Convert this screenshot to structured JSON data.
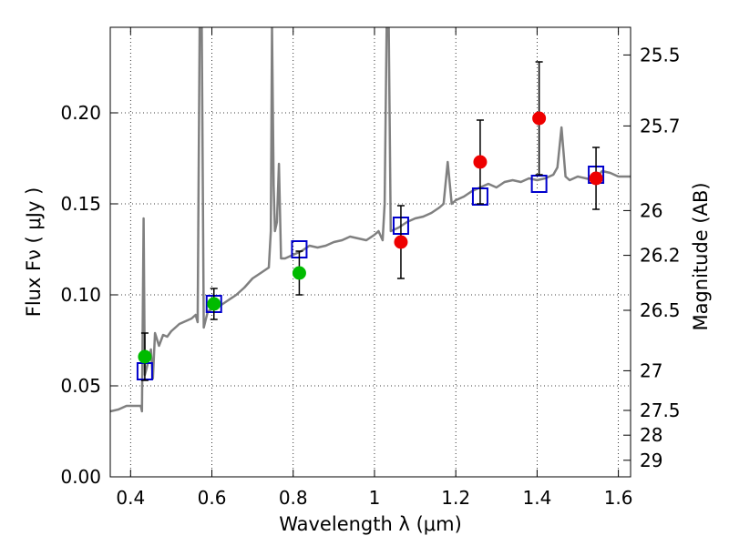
{
  "chart_data": {
    "type": "scatter",
    "xlabel": "Wavelength  λ (μm)",
    "ylabel": "Flux  Fν  ( μJy )",
    "y2label": "Magnitude (AB)",
    "xlim": [
      0.35,
      1.63
    ],
    "ylim": [
      0.0,
      0.247
    ],
    "grid": true,
    "x_ticks": [
      0.4,
      0.6,
      0.8,
      1.0,
      1.2,
      1.4,
      1.6
    ],
    "x_tick_labels": [
      "0.4",
      "0.6",
      "0.8",
      "1",
      "1.2",
      "1.4",
      "1.6"
    ],
    "y_ticks": [
      0.0,
      0.05,
      0.1,
      0.15,
      0.2
    ],
    "y_tick_labels": [
      "0.00",
      "0.05",
      "0.10",
      "0.15",
      "0.20"
    ],
    "y2_ticks": [
      {
        "label": "25.5",
        "flux": 0.2318
      },
      {
        "label": "25.7",
        "flux": 0.1928
      },
      {
        "label": "26",
        "flux": 0.1463
      },
      {
        "label": "26.2",
        "flux": 0.1217
      },
      {
        "label": "26.5",
        "flux": 0.0915
      },
      {
        "label": "27",
        "flux": 0.0583
      },
      {
        "label": "27.5",
        "flux": 0.0365
      },
      {
        "label": "28",
        "flux": 0.0229
      },
      {
        "label": "29",
        "flux": 0.0091
      }
    ],
    "colors": {
      "model": "#808080",
      "green": "#00bb00",
      "red": "#ee0000",
      "box": "#0000cc",
      "errbar": "#000000"
    },
    "model_spectrum": [
      [
        0.35,
        0.036
      ],
      [
        0.37,
        0.037
      ],
      [
        0.39,
        0.039
      ],
      [
        0.41,
        0.039
      ],
      [
        0.425,
        0.039
      ],
      [
        0.428,
        0.036
      ],
      [
        0.432,
        0.142
      ],
      [
        0.435,
        0.056
      ],
      [
        0.44,
        0.06
      ],
      [
        0.45,
        0.07
      ],
      [
        0.455,
        0.054
      ],
      [
        0.46,
        0.079
      ],
      [
        0.47,
        0.072
      ],
      [
        0.48,
        0.078
      ],
      [
        0.49,
        0.077
      ],
      [
        0.5,
        0.08
      ],
      [
        0.51,
        0.082
      ],
      [
        0.52,
        0.084
      ],
      [
        0.53,
        0.085
      ],
      [
        0.54,
        0.086
      ],
      [
        0.55,
        0.087
      ],
      [
        0.56,
        0.089
      ],
      [
        0.565,
        0.085
      ],
      [
        0.57,
        0.247
      ],
      [
        0.575,
        0.247
      ],
      [
        0.58,
        0.082
      ],
      [
        0.59,
        0.091
      ],
      [
        0.6,
        0.092
      ],
      [
        0.62,
        0.094
      ],
      [
        0.64,
        0.097
      ],
      [
        0.66,
        0.1
      ],
      [
        0.68,
        0.104
      ],
      [
        0.7,
        0.109
      ],
      [
        0.72,
        0.112
      ],
      [
        0.74,
        0.115
      ],
      [
        0.745,
        0.135
      ],
      [
        0.748,
        0.247
      ],
      [
        0.752,
        0.16
      ],
      [
        0.755,
        0.135
      ],
      [
        0.76,
        0.14
      ],
      [
        0.765,
        0.172
      ],
      [
        0.77,
        0.12
      ],
      [
        0.78,
        0.12
      ],
      [
        0.8,
        0.122
      ],
      [
        0.82,
        0.124
      ],
      [
        0.84,
        0.127
      ],
      [
        0.86,
        0.126
      ],
      [
        0.88,
        0.127
      ],
      [
        0.9,
        0.129
      ],
      [
        0.92,
        0.13
      ],
      [
        0.94,
        0.132
      ],
      [
        0.96,
        0.131
      ],
      [
        0.98,
        0.13
      ],
      [
        1.0,
        0.133
      ],
      [
        1.01,
        0.135
      ],
      [
        1.02,
        0.13
      ],
      [
        1.025,
        0.15
      ],
      [
        1.03,
        0.247
      ],
      [
        1.035,
        0.247
      ],
      [
        1.04,
        0.135
      ],
      [
        1.06,
        0.137
      ],
      [
        1.08,
        0.14
      ],
      [
        1.1,
        0.142
      ],
      [
        1.12,
        0.143
      ],
      [
        1.14,
        0.145
      ],
      [
        1.16,
        0.148
      ],
      [
        1.17,
        0.15
      ],
      [
        1.18,
        0.173
      ],
      [
        1.19,
        0.15
      ],
      [
        1.2,
        0.152
      ],
      [
        1.22,
        0.154
      ],
      [
        1.24,
        0.157
      ],
      [
        1.26,
        0.159
      ],
      [
        1.28,
        0.161
      ],
      [
        1.3,
        0.159
      ],
      [
        1.32,
        0.162
      ],
      [
        1.34,
        0.163
      ],
      [
        1.36,
        0.162
      ],
      [
        1.38,
        0.164
      ],
      [
        1.4,
        0.163
      ],
      [
        1.42,
        0.164
      ],
      [
        1.44,
        0.166
      ],
      [
        1.45,
        0.17
      ],
      [
        1.46,
        0.192
      ],
      [
        1.47,
        0.165
      ],
      [
        1.48,
        0.163
      ],
      [
        1.5,
        0.165
      ],
      [
        1.52,
        0.164
      ],
      [
        1.54,
        0.163
      ],
      [
        1.56,
        0.168
      ],
      [
        1.58,
        0.167
      ],
      [
        1.6,
        0.165
      ],
      [
        1.63,
        0.165
      ]
    ],
    "model_boxes": [
      {
        "x": 0.435,
        "y": 0.058
      },
      {
        "x": 0.605,
        "y": 0.095
      },
      {
        "x": 0.815,
        "y": 0.125
      },
      {
        "x": 1.065,
        "y": 0.138
      },
      {
        "x": 1.26,
        "y": 0.154
      },
      {
        "x": 1.405,
        "y": 0.161
      },
      {
        "x": 1.545,
        "y": 0.166
      }
    ],
    "green_points": [
      {
        "x": 0.435,
        "y": 0.066,
        "err": 0.013
      },
      {
        "x": 0.605,
        "y": 0.095,
        "err": 0.0085
      },
      {
        "x": 0.815,
        "y": 0.112,
        "err": 0.012
      }
    ],
    "red_points": [
      {
        "x": 1.065,
        "y": 0.129,
        "err": 0.02
      },
      {
        "x": 1.26,
        "y": 0.173,
        "err": 0.023
      },
      {
        "x": 1.405,
        "y": 0.197,
        "err": 0.031
      },
      {
        "x": 1.545,
        "y": 0.164,
        "err": 0.017
      }
    ]
  }
}
